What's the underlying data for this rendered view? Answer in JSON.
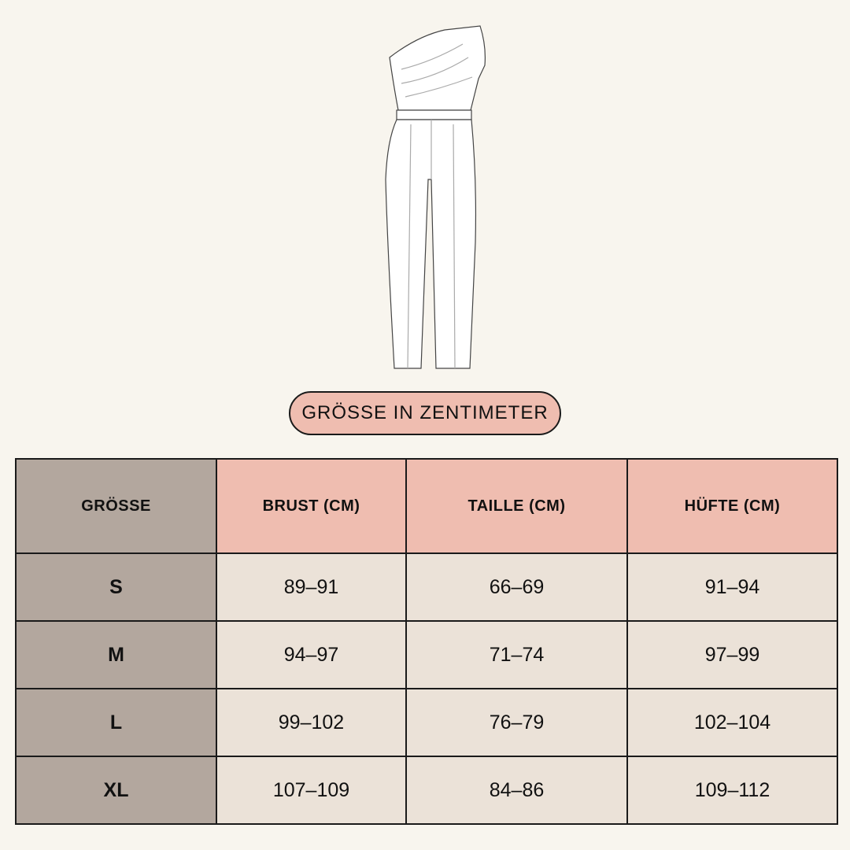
{
  "badge": "GRÖSSE IN ZENTIMETER",
  "table": {
    "headers": [
      "GRÖSSE",
      "BRUST (CM)",
      "TAILLE (CM)",
      "HÜFTE (CM)"
    ],
    "rows": [
      [
        "S",
        "89–91",
        "66–69",
        "91–94"
      ],
      [
        "M",
        "94–97",
        "71–74",
        "97–99"
      ],
      [
        "L",
        "99–102",
        "76–79",
        "102–104"
      ],
      [
        "XL",
        "107–109",
        "84–86",
        "109–112"
      ]
    ]
  }
}
